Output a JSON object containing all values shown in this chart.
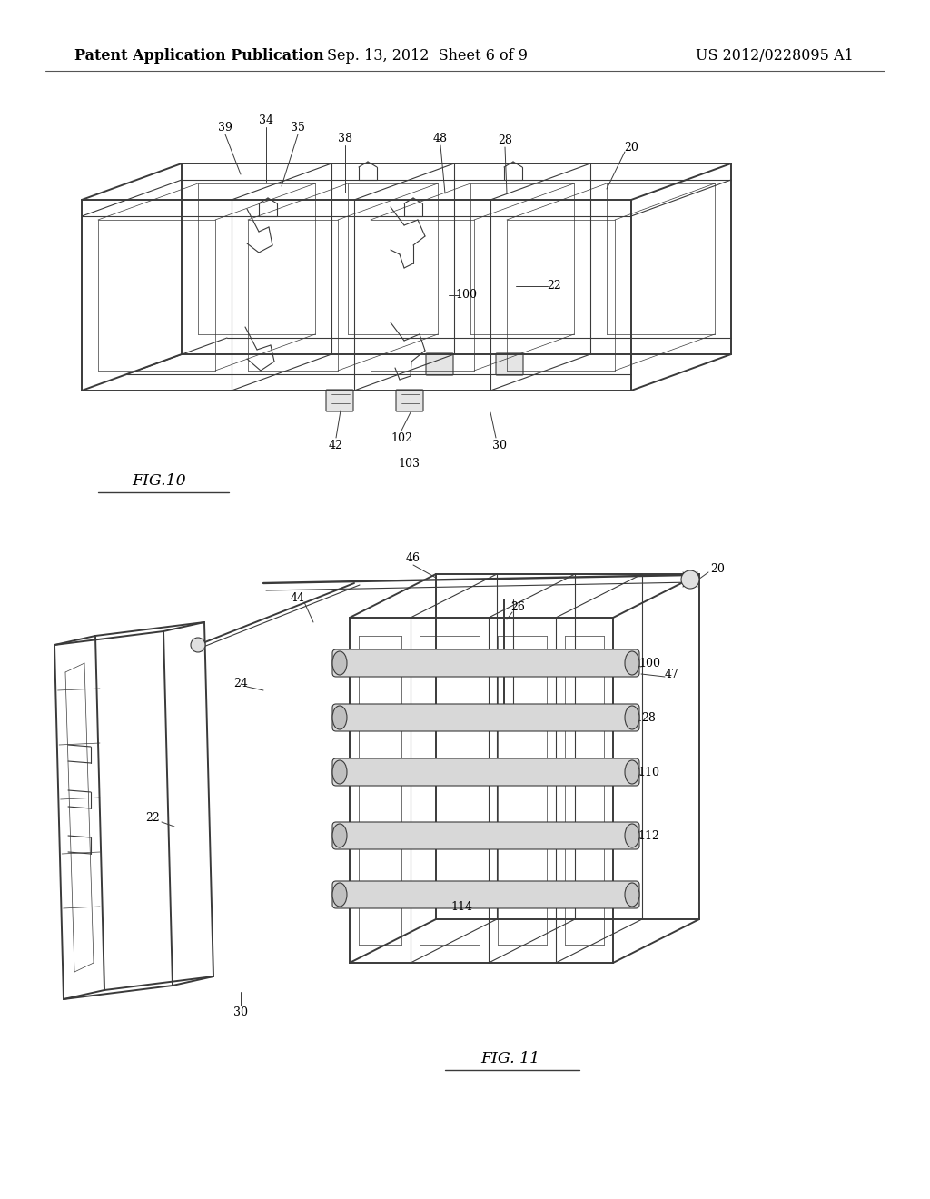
{
  "background_color": "#ffffff",
  "header_left": "Patent Application Publication",
  "header_center": "Sep. 13, 2012  Sheet 6 of 9",
  "header_right": "US 2012/0228095 A1",
  "header_fontsize": 11.5,
  "header_bold": true,
  "line_color": "#3a3a3a",
  "annotation_fontsize": 9.0,
  "fig_label_fontsize": 12.5,
  "fig10_label": "FIG.10",
  "fig11_label": "FIG. 11"
}
